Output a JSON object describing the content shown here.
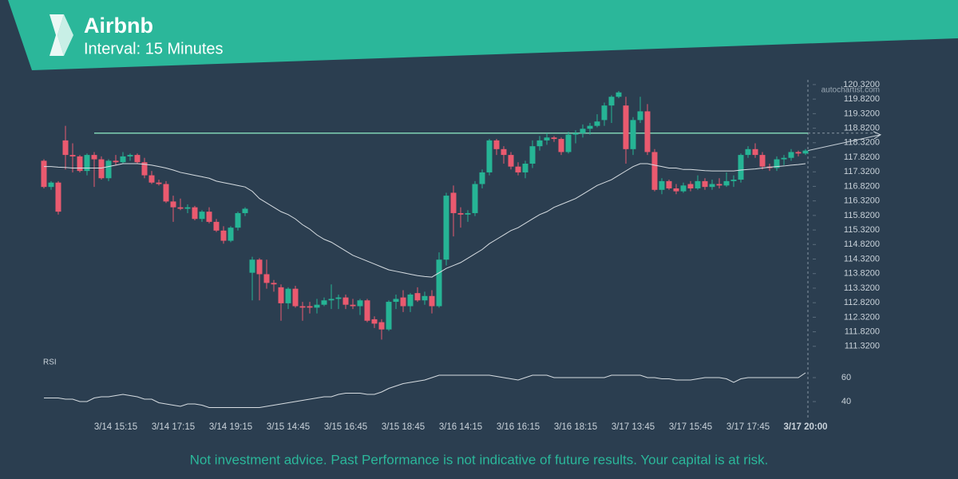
{
  "header": {
    "title": "Airbnb",
    "subtitle": "Interval: 15 Minutes"
  },
  "watermark": "autochartist.com",
  "disclaimer": "Not investment advice. Past Performance is not indicative of future results. Your capital is at risk.",
  "chart_data": {
    "type": "candlestick",
    "up_color": "#26b495",
    "down_color": "#ea5a6f",
    "categories": [
      null,
      null,
      null,
      null,
      null,
      null,
      null,
      null,
      null,
      null,
      "3/14 15:15",
      null,
      null,
      null,
      null,
      null,
      null,
      null,
      "3/14 17:15",
      null,
      null,
      null,
      null,
      null,
      null,
      null,
      "3/14 19:15",
      null,
      null,
      null,
      null,
      null,
      null,
      null,
      "3/15 14:45",
      null,
      null,
      null,
      null,
      null,
      null,
      null,
      "3/15 16:45",
      null,
      null,
      null,
      null,
      null,
      null,
      null,
      "3/15 18:45",
      null,
      null,
      null,
      null,
      null,
      null,
      null,
      "3/16 14:15",
      null,
      null,
      null,
      null,
      null,
      null,
      null,
      "3/16 16:15",
      null,
      null,
      null,
      null,
      null,
      null,
      null,
      "3/16 18:15",
      null,
      null,
      null,
      null,
      null,
      null,
      null,
      "3/17 13:45",
      null,
      null,
      null,
      null,
      null,
      null,
      null,
      "3/17 15:45",
      null,
      null,
      null,
      null,
      null,
      null,
      null,
      "3/17 17:45",
      null,
      null,
      null,
      null,
      null,
      null,
      null,
      "3/17 20:00"
    ],
    "ohlc": [
      [
        117.7,
        117.75,
        116.75,
        116.8
      ],
      [
        116.8,
        117.0,
        116.7,
        116.95
      ],
      [
        116.95,
        117.0,
        115.85,
        115.95
      ],
      [
        118.4,
        118.9,
        117.4,
        117.9
      ],
      [
        117.9,
        118.3,
        117.3,
        117.85
      ],
      [
        117.85,
        117.9,
        117.3,
        117.35
      ],
      [
        117.35,
        117.95,
        117.2,
        117.9
      ],
      [
        117.9,
        118.0,
        116.8,
        117.75
      ],
      [
        117.75,
        117.85,
        117.05,
        117.1
      ],
      [
        117.1,
        117.75,
        117.0,
        117.7
      ],
      [
        117.7,
        117.9,
        117.55,
        117.65
      ],
      [
        117.65,
        118.0,
        117.6,
        117.85
      ],
      [
        117.85,
        117.95,
        117.7,
        117.9
      ],
      [
        117.9,
        117.95,
        117.6,
        117.65
      ],
      [
        117.65,
        117.8,
        117.1,
        117.2
      ],
      [
        117.2,
        117.35,
        116.9,
        116.95
      ],
      [
        116.95,
        117.05,
        116.85,
        116.9
      ],
      [
        116.9,
        117.0,
        116.25,
        116.3
      ],
      [
        116.3,
        116.5,
        115.6,
        116.1
      ],
      [
        116.1,
        116.4,
        116.0,
        116.05
      ],
      [
        116.05,
        116.2,
        115.9,
        116.1
      ],
      [
        116.1,
        116.15,
        115.65,
        115.7
      ],
      [
        115.7,
        116.0,
        115.6,
        115.95
      ],
      [
        115.95,
        116.1,
        115.55,
        115.6
      ],
      [
        115.6,
        115.7,
        115.25,
        115.3
      ],
      [
        115.3,
        115.45,
        114.85,
        114.95
      ],
      [
        114.95,
        115.45,
        114.9,
        115.4
      ],
      [
        115.4,
        115.95,
        115.3,
        115.9
      ],
      [
        115.9,
        116.1,
        115.8,
        116.05
      ],
      [
        113.85,
        114.4,
        112.9,
        114.3
      ],
      [
        114.3,
        114.35,
        112.9,
        113.8
      ],
      [
        113.8,
        114.3,
        113.3,
        113.5
      ],
      [
        113.5,
        113.6,
        113.2,
        113.45
      ],
      [
        113.35,
        113.45,
        112.2,
        112.8
      ],
      [
        112.8,
        113.35,
        112.6,
        113.3
      ],
      [
        113.3,
        113.4,
        112.65,
        112.7
      ],
      [
        112.7,
        112.85,
        112.2,
        112.65
      ],
      [
        112.7,
        112.85,
        112.45,
        112.65
      ],
      [
        112.65,
        112.95,
        112.45,
        112.75
      ],
      [
        112.75,
        113.0,
        112.7,
        112.9
      ],
      [
        112.9,
        113.45,
        112.6,
        112.95
      ],
      [
        112.95,
        113.1,
        112.6,
        113.0
      ],
      [
        113.0,
        113.1,
        112.6,
        112.75
      ],
      [
        112.75,
        112.95,
        112.6,
        112.7
      ],
      [
        112.7,
        112.95,
        112.4,
        112.9
      ],
      [
        112.9,
        112.95,
        112.15,
        112.2
      ],
      [
        112.25,
        112.35,
        111.95,
        112.1
      ],
      [
        112.15,
        112.25,
        111.55,
        111.9
      ],
      [
        111.9,
        112.9,
        111.85,
        112.85
      ],
      [
        112.85,
        113.1,
        112.6,
        112.95
      ],
      [
        113.0,
        113.25,
        112.5,
        112.7
      ],
      [
        112.7,
        113.15,
        112.5,
        113.1
      ],
      [
        113.15,
        113.35,
        112.85,
        112.9
      ],
      [
        112.9,
        113.2,
        112.75,
        113.05
      ],
      [
        113.05,
        113.25,
        112.45,
        112.7
      ],
      [
        112.7,
        114.55,
        112.65,
        114.3
      ],
      [
        114.3,
        116.6,
        114.1,
        116.5
      ],
      [
        116.6,
        116.85,
        115.1,
        115.9
      ],
      [
        115.9,
        116.1,
        115.4,
        115.85
      ],
      [
        115.85,
        116.0,
        115.6,
        115.9
      ],
      [
        115.9,
        117.0,
        115.8,
        116.9
      ],
      [
        116.9,
        117.4,
        116.75,
        117.3
      ],
      [
        117.3,
        118.45,
        117.2,
        118.4
      ],
      [
        118.4,
        118.45,
        117.9,
        118.1
      ],
      [
        118.1,
        118.2,
        117.6,
        117.9
      ],
      [
        117.9,
        118.0,
        117.4,
        117.5
      ],
      [
        117.5,
        117.65,
        117.2,
        117.3
      ],
      [
        117.3,
        117.7,
        117.1,
        117.6
      ],
      [
        117.6,
        118.4,
        117.45,
        118.2
      ],
      [
        118.2,
        118.55,
        118.05,
        118.4
      ],
      [
        118.4,
        118.65,
        118.25,
        118.5
      ],
      [
        118.5,
        118.55,
        118.35,
        118.45
      ],
      [
        118.45,
        118.5,
        117.9,
        118.0
      ],
      [
        118.0,
        118.7,
        117.95,
        118.6
      ],
      [
        118.6,
        118.75,
        118.3,
        118.65
      ],
      [
        118.65,
        118.95,
        118.5,
        118.8
      ],
      [
        118.8,
        119.0,
        118.6,
        118.9
      ],
      [
        118.9,
        119.3,
        118.85,
        119.05
      ],
      [
        119.1,
        119.7,
        118.9,
        119.6
      ],
      [
        119.6,
        119.95,
        119.0,
        119.9
      ],
      [
        119.9,
        120.1,
        119.85,
        120.05
      ],
      [
        119.6,
        119.9,
        117.6,
        118.1
      ],
      [
        118.1,
        119.2,
        117.9,
        119.1
      ],
      [
        119.1,
        119.9,
        119.0,
        119.4
      ],
      [
        119.4,
        119.65,
        117.9,
        118.0
      ],
      [
        118.0,
        118.1,
        116.65,
        116.7
      ],
      [
        116.7,
        117.1,
        116.55,
        117.0
      ],
      [
        117.0,
        117.05,
        116.7,
        116.75
      ],
      [
        116.75,
        116.9,
        116.55,
        116.65
      ],
      [
        116.65,
        116.95,
        116.6,
        116.85
      ],
      [
        116.9,
        117.0,
        116.65,
        116.75
      ],
      [
        116.75,
        117.2,
        116.7,
        117.0
      ],
      [
        117.0,
        117.1,
        116.7,
        116.8
      ],
      [
        116.8,
        117.05,
        116.7,
        116.9
      ],
      [
        116.9,
        117.1,
        116.75,
        116.85
      ],
      [
        116.85,
        117.3,
        116.8,
        117.0
      ],
      [
        117.0,
        117.2,
        116.8,
        117.05
      ],
      [
        117.05,
        117.95,
        116.95,
        117.9
      ],
      [
        117.9,
        118.2,
        117.8,
        118.1
      ],
      [
        118.1,
        118.3,
        117.8,
        117.9
      ],
      [
        117.9,
        118.0,
        117.4,
        117.5
      ],
      [
        117.5,
        117.6,
        117.35,
        117.45
      ],
      [
        117.45,
        117.85,
        117.35,
        117.75
      ],
      [
        117.75,
        117.9,
        117.55,
        117.8
      ],
      [
        117.8,
        118.1,
        117.7,
        118.0
      ],
      [
        118.0,
        118.05,
        117.85,
        117.95
      ],
      [
        117.95,
        118.1,
        117.9,
        118.05
      ]
    ],
    "moving_average": [
      117.5,
      117.5,
      117.48,
      117.47,
      117.45,
      117.45,
      117.45,
      117.45,
      117.45,
      117.5,
      117.55,
      117.6,
      117.6,
      117.6,
      117.58,
      117.55,
      117.5,
      117.45,
      117.38,
      117.3,
      117.25,
      117.2,
      117.15,
      117.1,
      117.0,
      116.95,
      116.9,
      116.85,
      116.8,
      116.65,
      116.4,
      116.25,
      116.1,
      115.95,
      115.85,
      115.7,
      115.5,
      115.35,
      115.15,
      115.0,
      114.9,
      114.75,
      114.6,
      114.45,
      114.35,
      114.25,
      114.15,
      114.05,
      113.95,
      113.9,
      113.85,
      113.8,
      113.75,
      113.72,
      113.7,
      113.85,
      114.0,
      114.1,
      114.2,
      114.35,
      114.5,
      114.65,
      114.85,
      115.0,
      115.15,
      115.3,
      115.4,
      115.55,
      115.7,
      115.85,
      115.95,
      116.1,
      116.2,
      116.3,
      116.4,
      116.55,
      116.7,
      116.85,
      116.95,
      117.05,
      117.2,
      117.35,
      117.5,
      117.6,
      117.6,
      117.55,
      117.5,
      117.45,
      117.45,
      117.4,
      117.4,
      117.38,
      117.36,
      117.35,
      117.35,
      117.35,
      117.35,
      117.38,
      117.4,
      117.42,
      117.45,
      117.48,
      117.5,
      117.52,
      117.55,
      117.57,
      117.6
    ],
    "resistance": 118.65,
    "ylim": [
      111.15,
      120.62
    ],
    "yticks": [
      {
        "value": 111.32,
        "label": "111.3200"
      },
      {
        "value": 111.82,
        "label": "111.8200"
      },
      {
        "value": 112.32,
        "label": "112.3200"
      },
      {
        "value": 112.82,
        "label": "112.8200"
      },
      {
        "value": 113.32,
        "label": "113.3200"
      },
      {
        "value": 113.82,
        "label": "113.8200"
      },
      {
        "value": 114.32,
        "label": "114.3200"
      },
      {
        "value": 114.82,
        "label": "114.8200"
      },
      {
        "value": 115.32,
        "label": "115.3200"
      },
      {
        "value": 115.82,
        "label": "115.8200"
      },
      {
        "value": 116.32,
        "label": "116.3200"
      },
      {
        "value": 116.82,
        "label": "116.8200"
      },
      {
        "value": 117.32,
        "label": "117.3200"
      },
      {
        "value": 117.82,
        "label": "117.8200"
      },
      {
        "value": 118.32,
        "label": "118.3200"
      },
      {
        "value": 118.82,
        "label": "118.8200"
      },
      {
        "value": 119.32,
        "label": "119.3200"
      },
      {
        "value": 119.82,
        "label": "119.8200"
      },
      {
        "value": 120.32,
        "label": "120.3200"
      }
    ],
    "rsi": {
      "label": "RSI",
      "values": [
        43,
        43,
        43,
        42,
        42,
        40,
        40,
        43,
        44,
        44,
        45,
        46,
        45,
        44,
        42,
        42,
        39,
        38,
        37,
        36,
        38,
        38,
        37,
        35,
        35,
        35,
        35,
        35,
        35,
        35,
        35,
        36,
        37,
        38,
        39,
        40,
        41,
        42,
        43,
        44,
        44,
        46,
        47,
        47,
        47,
        46,
        46,
        48,
        51,
        53,
        55,
        56,
        57,
        58,
        60,
        62,
        62,
        62,
        62,
        62,
        62,
        62,
        62,
        61,
        60,
        59,
        58,
        60,
        62,
        62,
        62,
        60,
        60,
        60,
        60,
        60,
        60,
        60,
        60,
        62,
        62,
        62,
        62,
        62,
        60,
        60,
        59,
        59,
        58,
        58,
        58,
        59,
        60,
        60,
        60,
        59,
        56,
        59,
        60,
        60,
        60,
        60,
        60,
        60,
        60,
        60,
        64
      ],
      "ylim": [
        32,
        68
      ],
      "yticks": [
        40,
        60
      ]
    }
  }
}
